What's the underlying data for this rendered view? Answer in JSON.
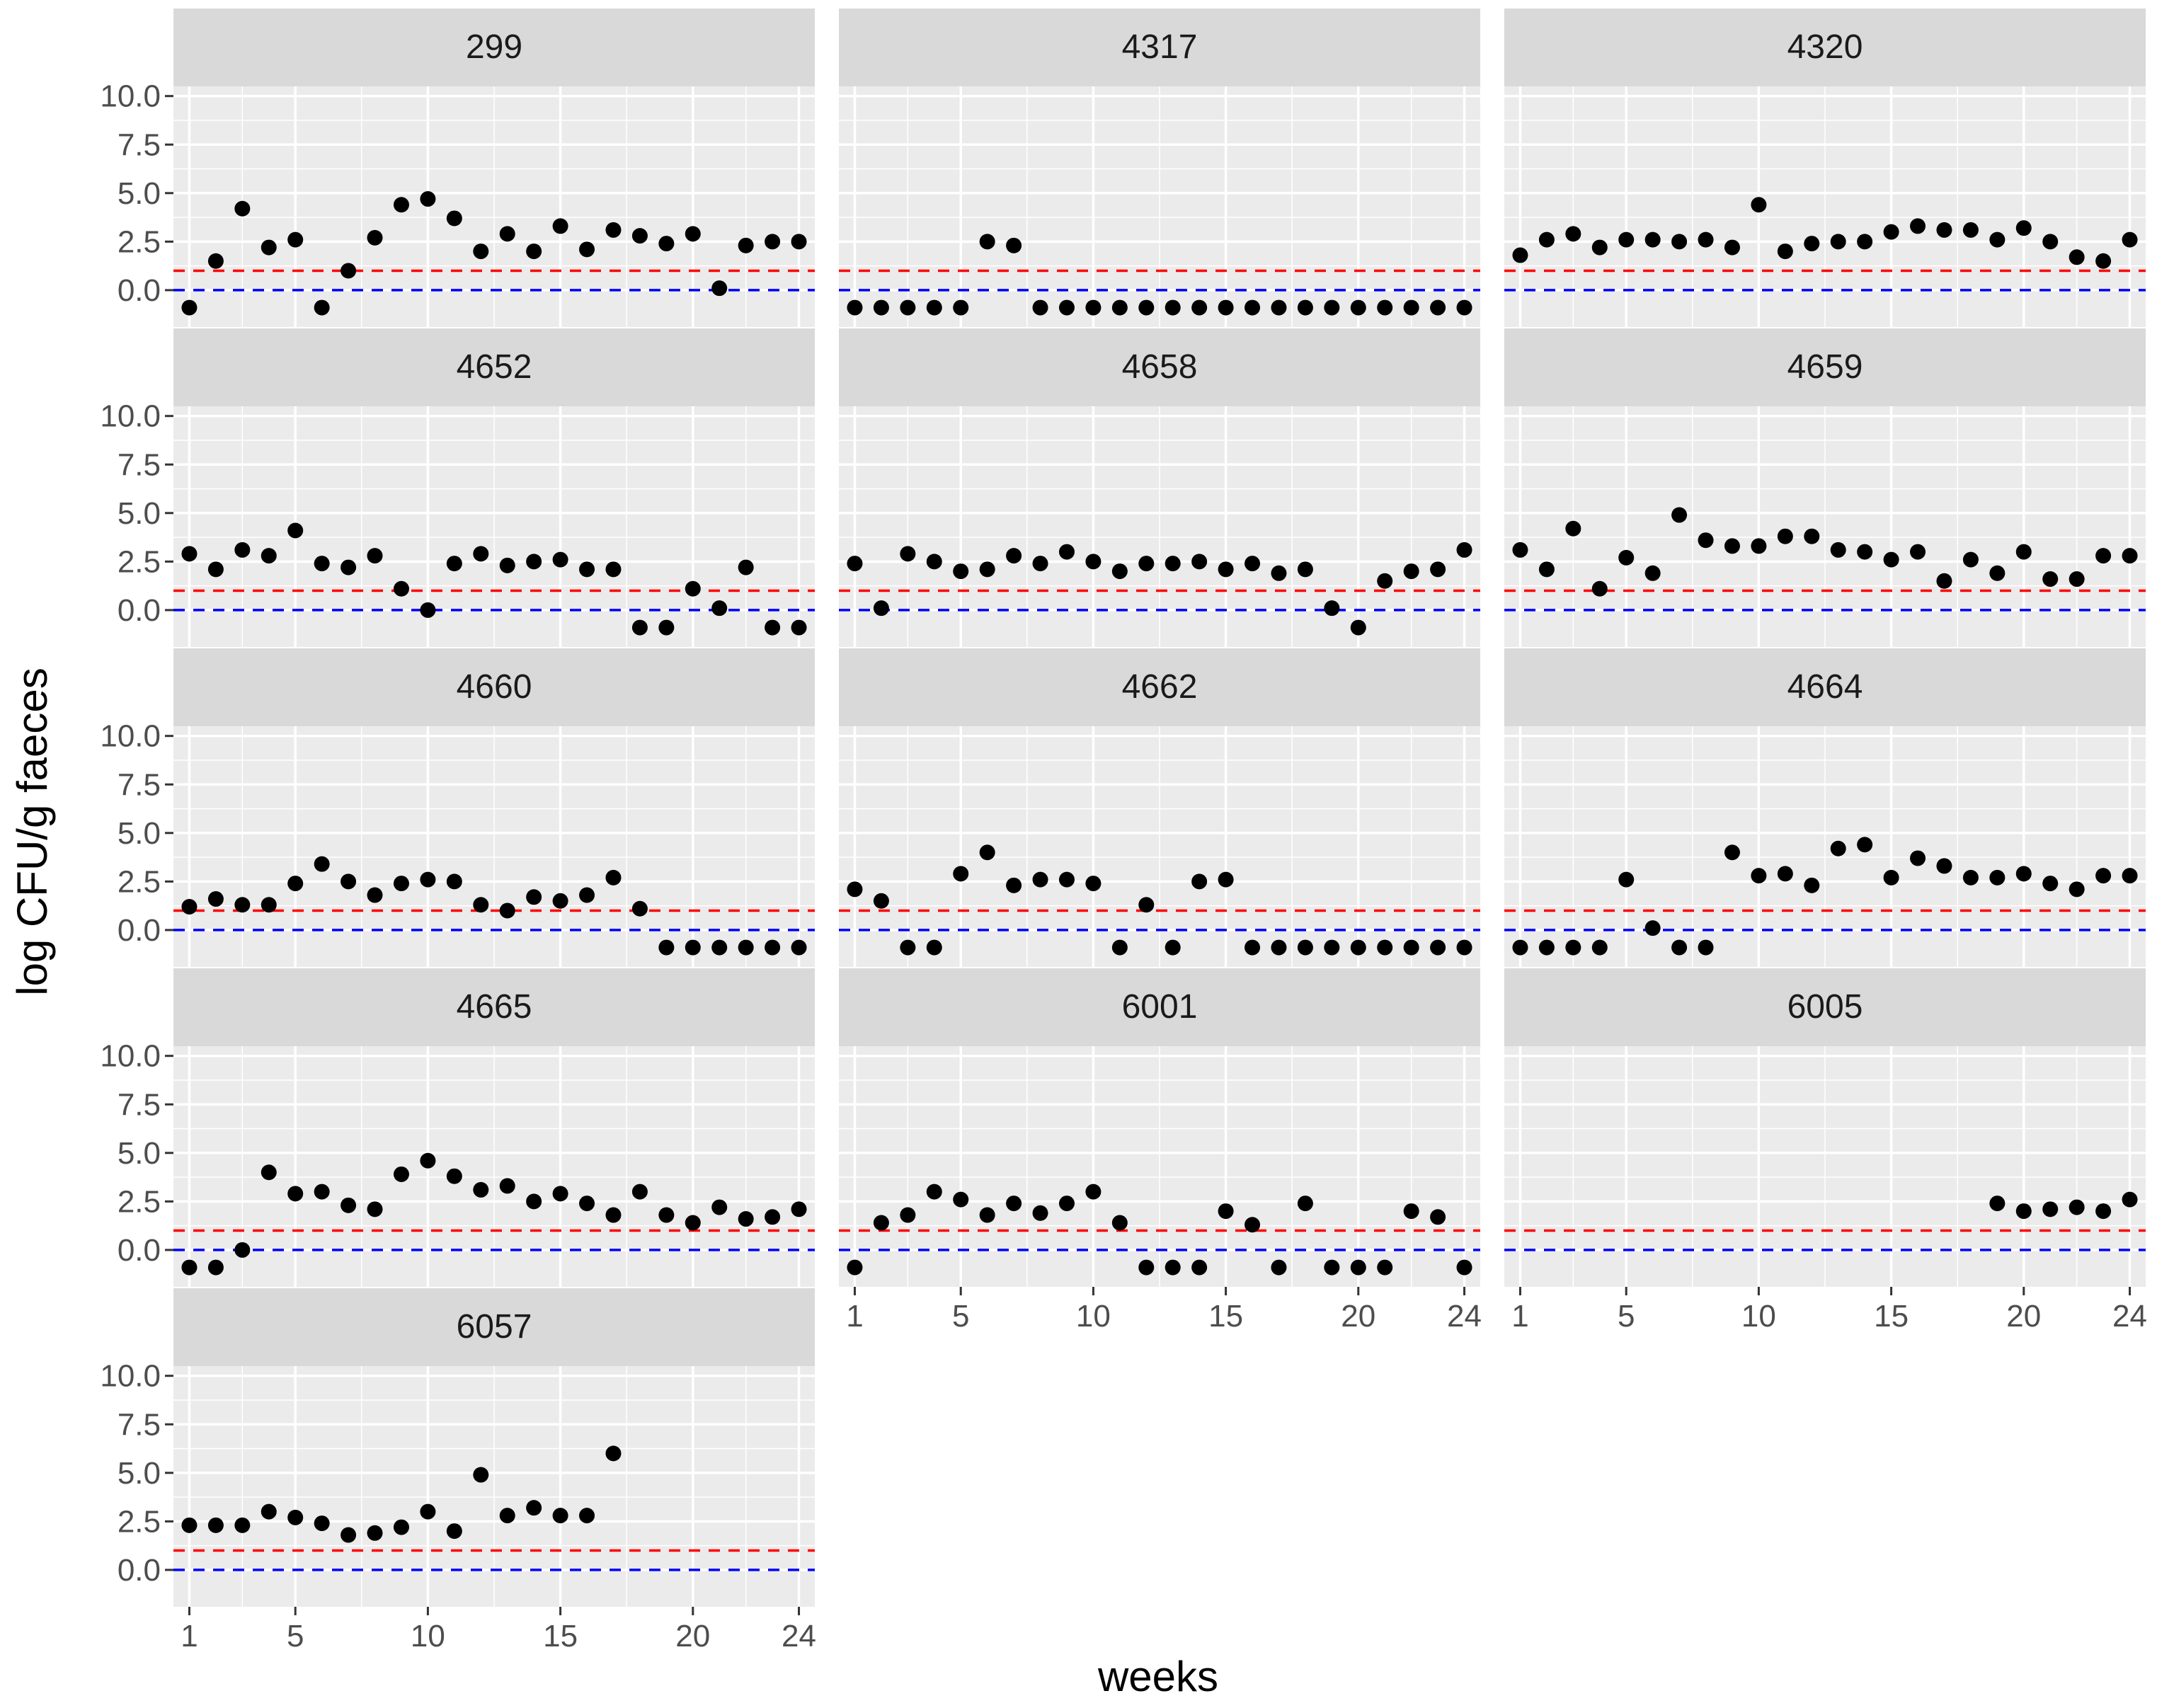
{
  "chart_data": {
    "type": "scatter",
    "layout": "facet-wrap, 3 columns",
    "xlabel": "weeks",
    "ylabel": "log CFU/g faeces",
    "xlim": [
      0.4,
      24.6
    ],
    "ylim": [
      -1.9,
      10.5
    ],
    "x_ticks": [
      1,
      5,
      10,
      15,
      20,
      24
    ],
    "y_ticks": [
      0,
      2.5,
      5,
      7.5,
      10
    ],
    "y_tick_labels": [
      "0.0",
      "2.5",
      "5.0",
      "7.5",
      "10.0"
    ],
    "reference_lines": [
      {
        "name": "threshold",
        "y": 1.0,
        "color": "#ff0000",
        "dash": "dashed"
      },
      {
        "name": "baseline",
        "y": 0.0,
        "color": "#0000ff",
        "dash": "dashed"
      }
    ],
    "colors": {
      "panel_bg": "#ebebeb",
      "strip_bg": "#d9d9d9",
      "grid": "#ffffff",
      "point": "#000000"
    },
    "panels": [
      {
        "label": "299",
        "points": [
          [
            1,
            -0.9
          ],
          [
            2,
            1.5
          ],
          [
            3,
            4.2
          ],
          [
            4,
            2.2
          ],
          [
            5,
            2.6
          ],
          [
            6,
            -0.9
          ],
          [
            7,
            1.0
          ],
          [
            8,
            2.7
          ],
          [
            9,
            4.4
          ],
          [
            10,
            4.7
          ],
          [
            11,
            3.7
          ],
          [
            12,
            2.0
          ],
          [
            13,
            2.9
          ],
          [
            14,
            2.0
          ],
          [
            15,
            3.3
          ],
          [
            16,
            2.1
          ],
          [
            17,
            3.1
          ],
          [
            18,
            2.8
          ],
          [
            19,
            2.4
          ],
          [
            20,
            2.9
          ],
          [
            21,
            0.1
          ],
          [
            22,
            2.3
          ],
          [
            23,
            2.5
          ],
          [
            24,
            2.5
          ]
        ]
      },
      {
        "label": "4317",
        "points": [
          [
            1,
            -0.9
          ],
          [
            2,
            -0.9
          ],
          [
            3,
            -0.9
          ],
          [
            4,
            -0.9
          ],
          [
            5,
            -0.9
          ],
          [
            6,
            2.5
          ],
          [
            7,
            2.3
          ],
          [
            8,
            -0.9
          ],
          [
            9,
            -0.9
          ],
          [
            10,
            -0.9
          ],
          [
            11,
            -0.9
          ],
          [
            12,
            -0.9
          ],
          [
            13,
            -0.9
          ],
          [
            14,
            -0.9
          ],
          [
            15,
            -0.9
          ],
          [
            16,
            -0.9
          ],
          [
            17,
            -0.9
          ],
          [
            18,
            -0.9
          ],
          [
            19,
            -0.9
          ],
          [
            20,
            -0.9
          ],
          [
            21,
            -0.9
          ],
          [
            22,
            -0.9
          ],
          [
            23,
            -0.9
          ],
          [
            24,
            -0.9
          ]
        ]
      },
      {
        "label": "4320",
        "points": [
          [
            1,
            1.8
          ],
          [
            2,
            2.6
          ],
          [
            3,
            2.9
          ],
          [
            4,
            2.2
          ],
          [
            5,
            2.6
          ],
          [
            6,
            2.6
          ],
          [
            7,
            2.5
          ],
          [
            8,
            2.6
          ],
          [
            9,
            2.2
          ],
          [
            10,
            4.4
          ],
          [
            11,
            2.0
          ],
          [
            12,
            2.4
          ],
          [
            13,
            2.5
          ],
          [
            14,
            2.5
          ],
          [
            15,
            3.0
          ],
          [
            16,
            3.3
          ],
          [
            17,
            3.1
          ],
          [
            18,
            3.1
          ],
          [
            19,
            2.6
          ],
          [
            20,
            3.2
          ],
          [
            21,
            2.5
          ],
          [
            22,
            1.7
          ],
          [
            23,
            1.5
          ],
          [
            24,
            2.6
          ]
        ]
      },
      {
        "label": "4652",
        "points": [
          [
            1,
            2.9
          ],
          [
            2,
            2.1
          ],
          [
            3,
            3.1
          ],
          [
            4,
            2.8
          ],
          [
            5,
            4.1
          ],
          [
            6,
            2.4
          ],
          [
            7,
            2.2
          ],
          [
            8,
            2.8
          ],
          [
            9,
            1.1
          ],
          [
            10,
            0.0
          ],
          [
            11,
            2.4
          ],
          [
            12,
            2.9
          ],
          [
            13,
            2.3
          ],
          [
            14,
            2.5
          ],
          [
            15,
            2.6
          ],
          [
            16,
            2.1
          ],
          [
            17,
            2.1
          ],
          [
            18,
            -0.9
          ],
          [
            19,
            -0.9
          ],
          [
            20,
            1.1
          ],
          [
            21,
            0.1
          ],
          [
            22,
            2.2
          ],
          [
            23,
            -0.9
          ],
          [
            24,
            -0.9
          ]
        ]
      },
      {
        "label": "4658",
        "points": [
          [
            1,
            2.4
          ],
          [
            2,
            0.1
          ],
          [
            3,
            2.9
          ],
          [
            4,
            2.5
          ],
          [
            5,
            2.0
          ],
          [
            6,
            2.1
          ],
          [
            7,
            2.8
          ],
          [
            8,
            2.4
          ],
          [
            9,
            3.0
          ],
          [
            10,
            2.5
          ],
          [
            11,
            2.0
          ],
          [
            12,
            2.4
          ],
          [
            13,
            2.4
          ],
          [
            14,
            2.5
          ],
          [
            15,
            2.1
          ],
          [
            16,
            2.4
          ],
          [
            17,
            1.9
          ],
          [
            18,
            2.1
          ],
          [
            19,
            0.1
          ],
          [
            20,
            -0.9
          ],
          [
            21,
            1.5
          ],
          [
            22,
            2.0
          ],
          [
            23,
            2.1
          ],
          [
            24,
            3.1
          ]
        ]
      },
      {
        "label": "4659",
        "points": [
          [
            1,
            3.1
          ],
          [
            2,
            2.1
          ],
          [
            3,
            4.2
          ],
          [
            4,
            1.1
          ],
          [
            5,
            2.7
          ],
          [
            6,
            1.9
          ],
          [
            7,
            4.9
          ],
          [
            8,
            3.6
          ],
          [
            9,
            3.3
          ],
          [
            10,
            3.3
          ],
          [
            11,
            3.8
          ],
          [
            12,
            3.8
          ],
          [
            13,
            3.1
          ],
          [
            14,
            3.0
          ],
          [
            15,
            2.6
          ],
          [
            16,
            3.0
          ],
          [
            17,
            1.5
          ],
          [
            18,
            2.6
          ],
          [
            19,
            1.9
          ],
          [
            20,
            3.0
          ],
          [
            21,
            1.6
          ],
          [
            22,
            1.6
          ],
          [
            23,
            2.8
          ],
          [
            24,
            2.8
          ]
        ]
      },
      {
        "label": "4660",
        "points": [
          [
            1,
            1.2
          ],
          [
            2,
            1.6
          ],
          [
            3,
            1.3
          ],
          [
            4,
            1.3
          ],
          [
            5,
            2.4
          ],
          [
            6,
            3.4
          ],
          [
            7,
            2.5
          ],
          [
            8,
            1.8
          ],
          [
            9,
            2.4
          ],
          [
            10,
            2.6
          ],
          [
            11,
            2.5
          ],
          [
            12,
            1.3
          ],
          [
            13,
            1.0
          ],
          [
            14,
            1.7
          ],
          [
            15,
            1.5
          ],
          [
            16,
            1.8
          ],
          [
            17,
            2.7
          ],
          [
            18,
            1.1
          ],
          [
            19,
            -0.9
          ],
          [
            20,
            -0.9
          ],
          [
            21,
            -0.9
          ],
          [
            22,
            -0.9
          ],
          [
            23,
            -0.9
          ],
          [
            24,
            -0.9
          ]
        ]
      },
      {
        "label": "4662",
        "points": [
          [
            1,
            2.1
          ],
          [
            2,
            1.5
          ],
          [
            3,
            -0.9
          ],
          [
            4,
            -0.9
          ],
          [
            5,
            2.9
          ],
          [
            6,
            4.0
          ],
          [
            7,
            2.3
          ],
          [
            8,
            2.6
          ],
          [
            9,
            2.6
          ],
          [
            10,
            2.4
          ],
          [
            11,
            -0.9
          ],
          [
            12,
            1.3
          ],
          [
            13,
            -0.9
          ],
          [
            14,
            2.5
          ],
          [
            15,
            2.6
          ],
          [
            16,
            -0.9
          ],
          [
            17,
            -0.9
          ],
          [
            18,
            -0.9
          ],
          [
            19,
            -0.9
          ],
          [
            20,
            -0.9
          ],
          [
            21,
            -0.9
          ],
          [
            22,
            -0.9
          ],
          [
            23,
            -0.9
          ],
          [
            24,
            -0.9
          ]
        ]
      },
      {
        "label": "4664",
        "points": [
          [
            1,
            -0.9
          ],
          [
            2,
            -0.9
          ],
          [
            3,
            -0.9
          ],
          [
            4,
            -0.9
          ],
          [
            5,
            2.6
          ],
          [
            6,
            0.1
          ],
          [
            7,
            -0.9
          ],
          [
            8,
            -0.9
          ],
          [
            9,
            4.0
          ],
          [
            10,
            2.8
          ],
          [
            11,
            2.9
          ],
          [
            12,
            2.3
          ],
          [
            13,
            4.2
          ],
          [
            14,
            4.4
          ],
          [
            15,
            2.7
          ],
          [
            16,
            3.7
          ],
          [
            17,
            3.3
          ],
          [
            18,
            2.7
          ],
          [
            19,
            2.7
          ],
          [
            20,
            2.9
          ],
          [
            21,
            2.4
          ],
          [
            22,
            2.1
          ],
          [
            23,
            2.8
          ],
          [
            24,
            2.8
          ]
        ]
      },
      {
        "label": "4665",
        "points": [
          [
            1,
            -0.9
          ],
          [
            2,
            -0.9
          ],
          [
            3,
            0.0
          ],
          [
            4,
            4.0
          ],
          [
            5,
            2.9
          ],
          [
            6,
            3.0
          ],
          [
            7,
            2.3
          ],
          [
            8,
            2.1
          ],
          [
            9,
            3.9
          ],
          [
            10,
            4.6
          ],
          [
            11,
            3.8
          ],
          [
            12,
            3.1
          ],
          [
            13,
            3.3
          ],
          [
            14,
            2.5
          ],
          [
            15,
            2.9
          ],
          [
            16,
            2.4
          ],
          [
            17,
            1.8
          ],
          [
            18,
            3.0
          ],
          [
            19,
            1.8
          ],
          [
            20,
            1.4
          ],
          [
            21,
            2.2
          ],
          [
            22,
            1.6
          ],
          [
            23,
            1.7
          ],
          [
            24,
            2.1
          ]
        ]
      },
      {
        "label": "6001",
        "points": [
          [
            1,
            -0.9
          ],
          [
            2,
            1.4
          ],
          [
            3,
            1.8
          ],
          [
            4,
            3.0
          ],
          [
            5,
            2.6
          ],
          [
            6,
            1.8
          ],
          [
            7,
            2.4
          ],
          [
            8,
            1.9
          ],
          [
            9,
            2.4
          ],
          [
            10,
            3.0
          ],
          [
            11,
            1.4
          ],
          [
            12,
            -0.9
          ],
          [
            13,
            -0.9
          ],
          [
            14,
            -0.9
          ],
          [
            15,
            2.0
          ],
          [
            16,
            1.3
          ],
          [
            17,
            -0.9
          ],
          [
            18,
            2.4
          ],
          [
            19,
            -0.9
          ],
          [
            20,
            -0.9
          ],
          [
            21,
            -0.9
          ],
          [
            22,
            2.0
          ],
          [
            23,
            1.7
          ],
          [
            24,
            -0.9
          ]
        ]
      },
      {
        "label": "6005",
        "points": [
          [
            19,
            2.4
          ],
          [
            20,
            2.0
          ],
          [
            21,
            2.1
          ],
          [
            22,
            2.2
          ],
          [
            23,
            2.0
          ],
          [
            24,
            2.6
          ]
        ]
      },
      {
        "label": "6057",
        "points": [
          [
            1,
            2.3
          ],
          [
            2,
            2.3
          ],
          [
            3,
            2.3
          ],
          [
            4,
            3.0
          ],
          [
            5,
            2.7
          ],
          [
            6,
            2.4
          ],
          [
            7,
            1.8
          ],
          [
            8,
            1.9
          ],
          [
            9,
            2.2
          ],
          [
            10,
            3.0
          ],
          [
            11,
            2.0
          ],
          [
            12,
            4.9
          ],
          [
            13,
            2.8
          ],
          [
            14,
            3.2
          ],
          [
            15,
            2.8
          ],
          [
            16,
            2.8
          ],
          [
            17,
            6.0
          ]
        ]
      }
    ]
  }
}
